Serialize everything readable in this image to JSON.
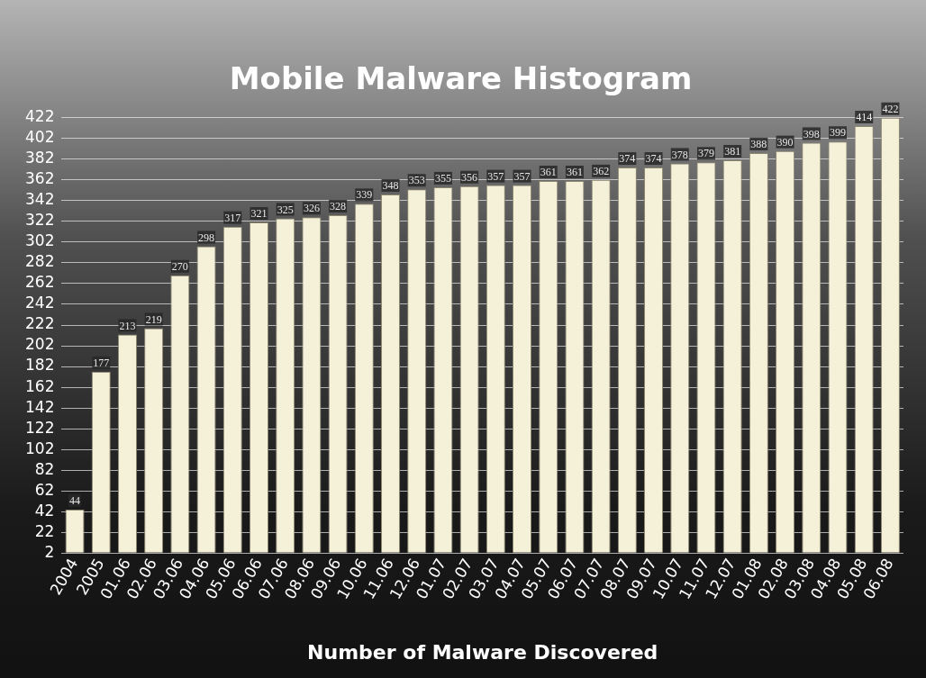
{
  "chart_data": {
    "type": "bar",
    "title": "Mobile Malware Histogram",
    "xlabel": "Number of Malware Discovered",
    "categories": [
      "2004",
      "2005",
      "01.06",
      "02.06",
      "03.06",
      "04.06",
      "05.06",
      "06.06",
      "07.06",
      "08.06",
      "09.06",
      "10.06",
      "11.06",
      "12.06",
      "01.07",
      "02.07",
      "03.07",
      "04.07",
      "05.07",
      "06.07",
      "07.07",
      "08.07",
      "09.07",
      "10.07",
      "11.07",
      "12.07",
      "01.08",
      "02.08",
      "03.08",
      "04.08",
      "05.08",
      "06.08"
    ],
    "values": [
      44,
      177,
      213,
      219,
      270,
      298,
      317,
      321,
      325,
      326,
      328,
      339,
      348,
      353,
      355,
      356,
      357,
      357,
      361,
      361,
      362,
      374,
      374,
      378,
      379,
      381,
      388,
      390,
      398,
      399,
      414,
      422
    ],
    "color": "#f5f0d8",
    "ylim": [
      2,
      422
    ],
    "yticks": [
      2,
      22,
      42,
      62,
      82,
      102,
      122,
      142,
      162,
      182,
      202,
      222,
      242,
      262,
      282,
      302,
      322,
      342,
      362,
      382,
      402,
      422
    ],
    "grid": "y",
    "data_labels": true
  }
}
